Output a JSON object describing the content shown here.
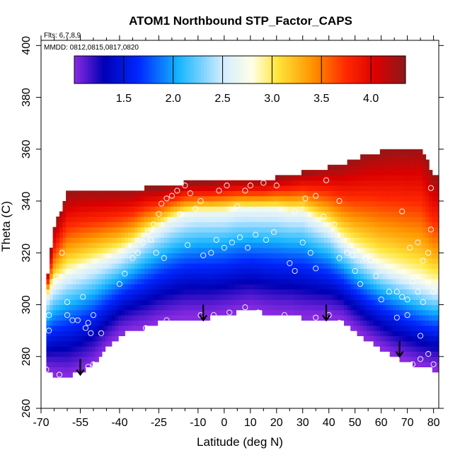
{
  "chart_data": {
    "type": "heatmap",
    "title": "ATOM1 Northbound STP_Factor_CAPS",
    "notes": {
      "flights": "Flts: 6,7,8,9",
      "dates": "MMDD: 0812,0815,0817,0820"
    },
    "xlabel": "Latitude (deg N)",
    "ylabel": "Theta (C)",
    "xlim": [
      -70,
      82
    ],
    "ylim": [
      260,
      402
    ],
    "x_ticks": [
      -70,
      -55,
      -40,
      -25,
      -10,
      0,
      10,
      20,
      30,
      40,
      50,
      60,
      70,
      80
    ],
    "x_tick_labels": [
      "-70",
      "-55",
      "-40",
      "-25",
      "-10",
      "0",
      "10",
      "20",
      "30",
      "40",
      "50",
      "60",
      "70",
      "80"
    ],
    "x_minor_ticks": [
      -65,
      -60,
      -50,
      -45,
      -35,
      -30,
      -20,
      -15,
      -5,
      5,
      15,
      25,
      35,
      45,
      55,
      65,
      75
    ],
    "y_ticks": [
      260,
      280,
      300,
      320,
      340,
      360,
      380,
      400
    ],
    "y_tick_labels": [
      "260",
      "280",
      "300",
      "320",
      "340",
      "360",
      "380",
      "400"
    ],
    "colorbar": {
      "range": [
        1.0,
        4.35
      ],
      "ticks": [
        1.5,
        2.0,
        2.5,
        3.0,
        3.5,
        4.0
      ],
      "tick_labels": [
        "1.5",
        "2.0",
        "2.5",
        "3.0",
        "3.5",
        "4.0"
      ],
      "colors": [
        {
          "value": 1.0,
          "color": "#8a2be2"
        },
        {
          "value": 1.3,
          "color": "#0000b4"
        },
        {
          "value": 1.65,
          "color": "#0028ff"
        },
        {
          "value": 2.05,
          "color": "#14b4ff"
        },
        {
          "value": 2.5,
          "color": "#d2ecff"
        },
        {
          "value": 2.8,
          "color": "#ffffe6"
        },
        {
          "value": 3.05,
          "color": "#ffe63c"
        },
        {
          "value": 3.4,
          "color": "#ff9600"
        },
        {
          "value": 3.75,
          "color": "#ff2800"
        },
        {
          "value": 4.05,
          "color": "#dc0000"
        },
        {
          "value": 4.35,
          "color": "#8b1a1a"
        }
      ]
    },
    "profile_lat": [
      -68,
      -65,
      -60,
      -55,
      -50,
      -45,
      -40,
      -35,
      -30,
      -25,
      -20,
      -15,
      -10,
      -5,
      0,
      5,
      10,
      15,
      20,
      25,
      30,
      35,
      40,
      45,
      50,
      55,
      60,
      65,
      70,
      75,
      80
    ],
    "profile_floor": [
      274,
      273,
      272,
      274,
      277,
      283,
      288,
      290,
      291,
      293,
      294,
      295,
      295,
      295,
      296,
      297,
      298,
      297,
      296,
      296,
      295,
      295,
      295,
      294,
      290,
      286,
      283,
      280,
      278,
      276,
      275
    ],
    "profile_top": [
      308,
      330,
      343,
      344,
      344,
      344,
      344,
      344,
      345,
      345,
      346,
      347,
      347,
      347,
      348,
      348,
      348,
      348,
      349,
      350,
      351,
      352,
      353,
      354,
      356,
      358,
      359,
      360,
      360,
      361,
      350
    ],
    "profile_white": [
      303,
      308,
      312,
      314,
      316,
      318,
      320,
      323,
      327,
      330,
      333,
      335,
      336,
      336,
      336,
      337,
      337,
      337,
      337,
      336,
      336,
      333,
      330,
      325,
      321,
      318,
      315,
      313,
      311,
      309,
      307
    ],
    "arrows": [
      {
        "lat": -55,
        "theta_from": 279,
        "theta_to": 273
      },
      {
        "lat": -8,
        "theta_from": 300,
        "theta_to": 294
      },
      {
        "lat": 39,
        "theta_from": 300,
        "theta_to": 294
      },
      {
        "lat": 67,
        "theta_from": 286,
        "theta_to": 280
      }
    ],
    "sample_points": [
      [
        -68,
        275
      ],
      [
        -67,
        290
      ],
      [
        -67,
        296
      ],
      [
        -65,
        309
      ],
      [
        -64,
        311
      ],
      [
        -62,
        320
      ],
      [
        -60,
        301
      ],
      [
        -60,
        296
      ],
      [
        -58,
        294
      ],
      [
        -56,
        294
      ],
      [
        -54,
        303
      ],
      [
        -53,
        291
      ],
      [
        -52,
        293
      ],
      [
        -51,
        289
      ],
      [
        -50,
        296
      ],
      [
        -47,
        289
      ],
      [
        -50,
        277
      ],
      [
        -52,
        276
      ],
      [
        -55,
        273
      ],
      [
        -63,
        273
      ],
      [
        -40,
        308
      ],
      [
        -38,
        312
      ],
      [
        -35,
        318
      ],
      [
        -33,
        320
      ],
      [
        -31,
        324
      ],
      [
        -29,
        328
      ],
      [
        -27,
        331
      ],
      [
        -25,
        335
      ],
      [
        -24,
        339
      ],
      [
        -22,
        341
      ],
      [
        -20,
        342
      ],
      [
        -18,
        344
      ],
      [
        -15,
        346
      ],
      [
        -13,
        343
      ],
      [
        -11,
        337
      ],
      [
        -9,
        340
      ],
      [
        -17,
        335
      ],
      [
        -23,
        318
      ],
      [
        -26,
        320
      ],
      [
        -28,
        325
      ],
      [
        -14,
        323
      ],
      [
        -8,
        319
      ],
      [
        -5,
        320
      ],
      [
        -3,
        325
      ],
      [
        -30,
        291
      ],
      [
        -22,
        294
      ],
      [
        -9,
        296
      ],
      [
        -4,
        296
      ],
      [
        2,
        297
      ],
      [
        8,
        299
      ],
      [
        13,
        297
      ],
      [
        23,
        296
      ],
      [
        0,
        322
      ],
      [
        3,
        324
      ],
      [
        6,
        326
      ],
      [
        9,
        322
      ],
      [
        12,
        327
      ],
      [
        16,
        325
      ],
      [
        19,
        328
      ],
      [
        25,
        316
      ],
      [
        27,
        313
      ],
      [
        30,
        324
      ],
      [
        33,
        320
      ],
      [
        35,
        314
      ],
      [
        38,
        334
      ],
      [
        42,
        331
      ],
      [
        44,
        318
      ],
      [
        47,
        320
      ],
      [
        49,
        319
      ],
      [
        5,
        338
      ],
      [
        8,
        344
      ],
      [
        10,
        346
      ],
      [
        15,
        347
      ],
      [
        20,
        346
      ],
      [
        27,
        336
      ],
      [
        31,
        341
      ],
      [
        35,
        342
      ],
      [
        39,
        348
      ],
      [
        44,
        340
      ],
      [
        -2,
        344
      ],
      [
        1,
        346
      ],
      [
        35,
        295
      ],
      [
        40,
        296
      ],
      [
        44,
        293
      ],
      [
        50,
        313
      ],
      [
        52,
        308
      ],
      [
        54,
        318
      ],
      [
        56,
        317
      ],
      [
        58,
        311
      ],
      [
        60,
        302
      ],
      [
        63,
        305
      ],
      [
        66,
        305
      ],
      [
        68,
        303
      ],
      [
        70,
        302
      ],
      [
        72,
        309
      ],
      [
        74,
        305
      ],
      [
        76,
        301
      ],
      [
        78,
        308
      ],
      [
        80,
        305
      ],
      [
        71,
        322
      ],
      [
        74,
        324
      ],
      [
        76,
        317
      ],
      [
        78,
        320
      ],
      [
        79,
        329
      ],
      [
        79,
        345
      ],
      [
        68,
        336
      ],
      [
        70,
        296
      ],
      [
        75,
        288
      ],
      [
        78,
        281
      ],
      [
        75,
        279
      ],
      [
        72,
        277
      ],
      [
        66,
        295
      ],
      [
        80,
        277
      ]
    ]
  }
}
